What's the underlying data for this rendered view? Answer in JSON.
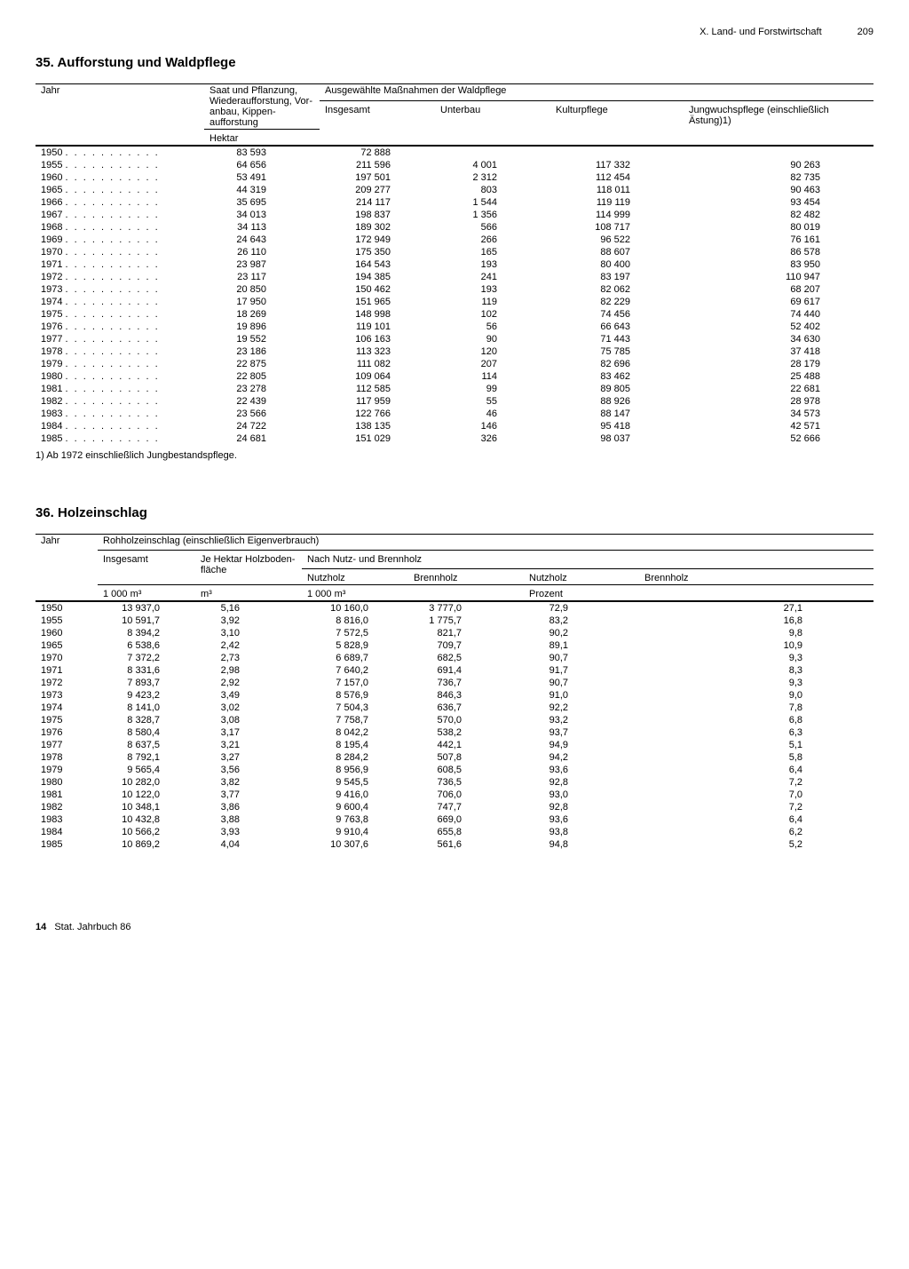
{
  "page": {
    "chapter": "X. Land- und Forstwirtschaft",
    "number": "209",
    "footer_bold": "14",
    "footer_text": "Stat. Jahrbuch 86"
  },
  "table35": {
    "title": "35. Aufforstung und Waldpflege",
    "col_year": "Jahr",
    "col_saat": "Saat und Pflanzung, Wiederauf­forstung, Vor­anbau, Kippen­aufforstung",
    "col_group": "Ausgewählte Maßnahmen der Waldpflege",
    "col_insg": "Insgesamt",
    "col_unterbau": "Unterbau",
    "col_kultur": "Kulturpflege",
    "col_jung": "Jungwuchspflege (einschließlich Ästung)",
    "sup1": "1)",
    "unit": "Hektar",
    "footnote": "1) Ab 1972 einschließlich Jungbestandspflege.",
    "rows": [
      {
        "y": "1950",
        "c1": "83 593",
        "c2": "72 888",
        "c3": "",
        "c4": "",
        "c5": ""
      },
      {
        "y": "1955",
        "c1": "64 656",
        "c2": "211 596",
        "c3": "4 001",
        "c4": "117 332",
        "c5": "90 263"
      },
      {
        "y": "1960",
        "c1": "53 491",
        "c2": "197 501",
        "c3": "2 312",
        "c4": "112 454",
        "c5": "82 735"
      },
      {
        "y": "1965",
        "c1": "44 319",
        "c2": "209 277",
        "c3": "803",
        "c4": "118 011",
        "c5": "90 463"
      },
      {
        "y": "1966",
        "c1": "35 695",
        "c2": "214 117",
        "c3": "1 544",
        "c4": "119 119",
        "c5": "93 454"
      },
      {
        "y": "1967",
        "c1": "34 013",
        "c2": "198 837",
        "c3": "1 356",
        "c4": "114 999",
        "c5": "82 482"
      },
      {
        "y": "1968",
        "c1": "34 113",
        "c2": "189 302",
        "c3": "566",
        "c4": "108 717",
        "c5": "80 019"
      },
      {
        "y": "1969",
        "c1": "24 643",
        "c2": "172 949",
        "c3": "266",
        "c4": "96 522",
        "c5": "76 161"
      },
      {
        "y": "1970",
        "c1": "26 110",
        "c2": "175 350",
        "c3": "165",
        "c4": "88 607",
        "c5": "86 578"
      },
      {
        "y": "1971",
        "c1": "23 987",
        "c2": "164 543",
        "c3": "193",
        "c4": "80 400",
        "c5": "83 950"
      },
      {
        "y": "1972",
        "c1": "23 117",
        "c2": "194 385",
        "c3": "241",
        "c4": "83 197",
        "c5": "110 947"
      },
      {
        "y": "1973",
        "c1": "20 850",
        "c2": "150 462",
        "c3": "193",
        "c4": "82 062",
        "c5": "68 207"
      },
      {
        "y": "1974",
        "c1": "17 950",
        "c2": "151 965",
        "c3": "119",
        "c4": "82 229",
        "c5": "69 617"
      },
      {
        "y": "1975",
        "c1": "18 269",
        "c2": "148 998",
        "c3": "102",
        "c4": "74 456",
        "c5": "74 440"
      },
      {
        "y": "1976",
        "c1": "19 896",
        "c2": "119 101",
        "c3": "56",
        "c4": "66 643",
        "c5": "52 402"
      },
      {
        "y": "1977",
        "c1": "19 552",
        "c2": "106 163",
        "c3": "90",
        "c4": "71 443",
        "c5": "34 630"
      },
      {
        "y": "1978",
        "c1": "23 186",
        "c2": "113 323",
        "c3": "120",
        "c4": "75 785",
        "c5": "37 418"
      },
      {
        "y": "1979",
        "c1": "22 875",
        "c2": "111 082",
        "c3": "207",
        "c4": "82 696",
        "c5": "28 179"
      },
      {
        "y": "1980",
        "c1": "22 805",
        "c2": "109 064",
        "c3": "114",
        "c4": "83 462",
        "c5": "25 488"
      },
      {
        "y": "1981",
        "c1": "23 278",
        "c2": "112 585",
        "c3": "99",
        "c4": "89 805",
        "c5": "22 681"
      },
      {
        "y": "1982",
        "c1": "22 439",
        "c2": "117 959",
        "c3": "55",
        "c4": "88 926",
        "c5": "28 978"
      },
      {
        "y": "1983",
        "c1": "23 566",
        "c2": "122 766",
        "c3": "46",
        "c4": "88 147",
        "c5": "34 573"
      },
      {
        "y": "1984",
        "c1": "24 722",
        "c2": "138 135",
        "c3": "146",
        "c4": "95 418",
        "c5": "42 571"
      },
      {
        "y": "1985",
        "c1": "24 681",
        "c2": "151 029",
        "c3": "326",
        "c4": "98 037",
        "c5": "52 666"
      }
    ]
  },
  "table36": {
    "title": "36. Holzeinschlag",
    "col_year": "Jahr",
    "col_group": "Rohholzeinschlag (einschließlich Eigenverbrauch)",
    "col_insg": "Insgesamt",
    "col_jeha": "Je Hektar Holzboden­fläche",
    "col_nutzbrenn": "Nach Nutz- und Brennholz",
    "col_nutz": "Nutzholz",
    "col_brenn": "Brennholz",
    "unit_1000m3": "1 000 m³",
    "unit_m3": "m³",
    "unit_pct": "Prozent",
    "rows": [
      {
        "y": "1950",
        "c1": "13 937,0",
        "c2": "5,16",
        "c3": "10 160,0",
        "c4": "3 777,0",
        "c5": "72,9",
        "c6": "27,1"
      },
      {
        "y": "1955",
        "c1": "10 591,7",
        "c2": "3,92",
        "c3": "8 816,0",
        "c4": "1 775,7",
        "c5": "83,2",
        "c6": "16,8"
      },
      {
        "y": "1960",
        "c1": "8 394,2",
        "c2": "3,10",
        "c3": "7 572,5",
        "c4": "821,7",
        "c5": "90,2",
        "c6": "9,8"
      },
      {
        "y": "1965",
        "c1": "6 538,6",
        "c2": "2,42",
        "c3": "5 828,9",
        "c4": "709,7",
        "c5": "89,1",
        "c6": "10,9"
      },
      {
        "y": "1970",
        "c1": "7 372,2",
        "c2": "2,73",
        "c3": "6 689,7",
        "c4": "682,5",
        "c5": "90,7",
        "c6": "9,3"
      },
      {
        "y": "1971",
        "c1": "8 331,6",
        "c2": "2,98",
        "c3": "7 640,2",
        "c4": "691,4",
        "c5": "91,7",
        "c6": "8,3"
      },
      {
        "y": "1972",
        "c1": "7 893,7",
        "c2": "2,92",
        "c3": "7 157,0",
        "c4": "736,7",
        "c5": "90,7",
        "c6": "9,3"
      },
      {
        "y": "1973",
        "c1": "9 423,2",
        "c2": "3,49",
        "c3": "8 576,9",
        "c4": "846,3",
        "c5": "91,0",
        "c6": "9,0"
      },
      {
        "y": "1974",
        "c1": "8 141,0",
        "c2": "3,02",
        "c3": "7 504,3",
        "c4": "636,7",
        "c5": "92,2",
        "c6": "7,8"
      },
      {
        "y": "1975",
        "c1": "8 328,7",
        "c2": "3,08",
        "c3": "7 758,7",
        "c4": "570,0",
        "c5": "93,2",
        "c6": "6,8"
      },
      {
        "y": "1976",
        "c1": "8 580,4",
        "c2": "3,17",
        "c3": "8 042,2",
        "c4": "538,2",
        "c5": "93,7",
        "c6": "6,3"
      },
      {
        "y": "1977",
        "c1": "8 637,5",
        "c2": "3,21",
        "c3": "8 195,4",
        "c4": "442,1",
        "c5": "94,9",
        "c6": "5,1"
      },
      {
        "y": "1978",
        "c1": "8 792,1",
        "c2": "3,27",
        "c3": "8 284,2",
        "c4": "507,8",
        "c5": "94,2",
        "c6": "5,8"
      },
      {
        "y": "1979",
        "c1": "9 565,4",
        "c2": "3,56",
        "c3": "8 956,9",
        "c4": "608,5",
        "c5": "93,6",
        "c6": "6,4"
      },
      {
        "y": "1980",
        "c1": "10 282,0",
        "c2": "3,82",
        "c3": "9 545,5",
        "c4": "736,5",
        "c5": "92,8",
        "c6": "7,2"
      },
      {
        "y": "1981",
        "c1": "10 122,0",
        "c2": "3,77",
        "c3": "9 416,0",
        "c4": "706,0",
        "c5": "93,0",
        "c6": "7,0"
      },
      {
        "y": "1982",
        "c1": "10 348,1",
        "c2": "3,86",
        "c3": "9 600,4",
        "c4": "747,7",
        "c5": "92,8",
        "c6": "7,2"
      },
      {
        "y": "1983",
        "c1": "10 432,8",
        "c2": "3,88",
        "c3": "9 763,8",
        "c4": "669,0",
        "c5": "93,6",
        "c6": "6,4"
      },
      {
        "y": "1984",
        "c1": "10 566,2",
        "c2": "3,93",
        "c3": "9 910,4",
        "c4": "655,8",
        "c5": "93,8",
        "c6": "6,2"
      },
      {
        "y": "1985",
        "c1": "10 869,2",
        "c2": "4,04",
        "c3": "10 307,6",
        "c4": "561,6",
        "c5": "94,8",
        "c6": "5,2"
      }
    ]
  }
}
